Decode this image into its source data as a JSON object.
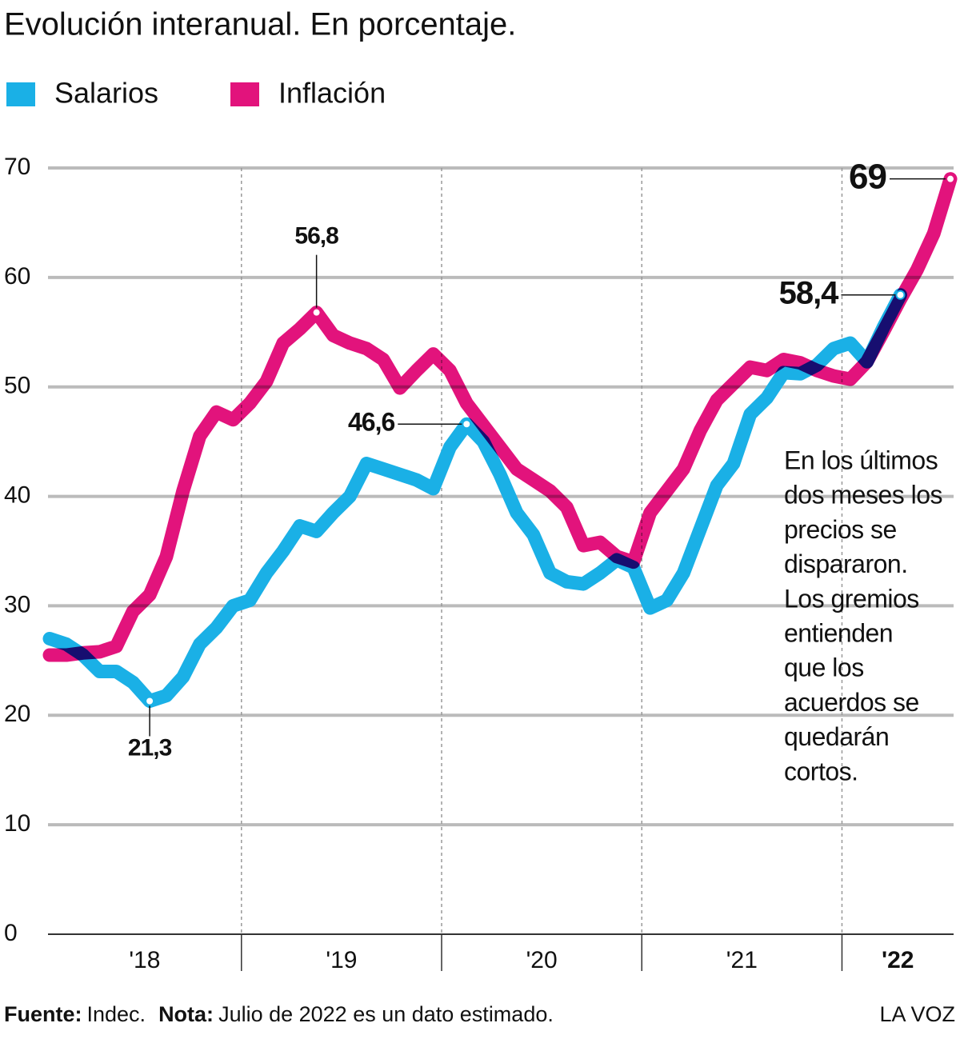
{
  "chart_data": {
    "type": "line",
    "title": "Evolución interanual. En porcentaje.",
    "categories": [
      null,
      null,
      null,
      null,
      null,
      null,
      null,
      null,
      null,
      null,
      null,
      null,
      null,
      null,
      null,
      null,
      null,
      null,
      null,
      null,
      null,
      null,
      null,
      null,
      null,
      null,
      null,
      null,
      null,
      null,
      null,
      null,
      null,
      null,
      null,
      null,
      null,
      null,
      null,
      null,
      null,
      null,
      null,
      null,
      null,
      null,
      null,
      null,
      null,
      null,
      null,
      null,
      null,
      null,
      null
    ],
    "year_labels": [
      "'18",
      "'19",
      "'20",
      "'21",
      "'22"
    ],
    "series": [
      {
        "name": "Salarios",
        "color": "#1ab0e6",
        "values": [
          27,
          26.5,
          25.5,
          24,
          24,
          23,
          21.3,
          21.8,
          23.5,
          26.5,
          28,
          30,
          30.5,
          33,
          35,
          37.3,
          36.8,
          38.5,
          40,
          43,
          42.5,
          42,
          41.5,
          40.7,
          44.5,
          46.6,
          45,
          42,
          38.5,
          36.5,
          33,
          32.2,
          32,
          33,
          34.2,
          33.5,
          29.8,
          30.5,
          33,
          37,
          41,
          43,
          47.5,
          49,
          51.3,
          51.2,
          52,
          53.5,
          54,
          52.3,
          55.5,
          58.4,
          null,
          null,
          null
        ],
        "value_labels": [
          null,
          null,
          null,
          null,
          null,
          null,
          "21,3",
          null,
          null,
          null,
          null,
          null,
          null,
          null,
          null,
          null,
          null,
          null,
          null,
          null,
          null,
          null,
          null,
          null,
          null,
          "46,6",
          null,
          null,
          null,
          null,
          null,
          null,
          null,
          null,
          null,
          null,
          null,
          null,
          null,
          null,
          null,
          null,
          null,
          null,
          null,
          null,
          null,
          null,
          null,
          null,
          null,
          "58,4",
          null,
          null,
          null
        ]
      },
      {
        "name": "Inflación",
        "color": "#e2137c",
        "values": [
          25.5,
          25.5,
          25.7,
          25.8,
          26.3,
          29.5,
          31,
          34.5,
          40.5,
          45.5,
          47.7,
          47,
          48.5,
          50.5,
          54,
          55.3,
          56.8,
          54.7,
          54,
          53.5,
          52.5,
          49.9,
          51.5,
          53,
          51.5,
          48.5,
          46.5,
          44.5,
          42.5,
          41.5,
          40.5,
          39,
          35.5,
          35.8,
          34.5,
          34,
          38.5,
          40.5,
          42.5,
          46,
          48.8,
          50.3,
          51.8,
          51.5,
          52.5,
          52.2,
          51.5,
          51,
          50.7,
          52.3,
          55.1,
          58,
          60.7,
          64,
          69
        ],
        "value_labels": [
          null,
          null,
          null,
          null,
          null,
          null,
          null,
          null,
          null,
          null,
          null,
          null,
          null,
          null,
          null,
          null,
          "56,8",
          null,
          null,
          null,
          null,
          null,
          null,
          null,
          null,
          null,
          null,
          null,
          null,
          null,
          null,
          null,
          null,
          null,
          null,
          null,
          null,
          null,
          null,
          null,
          null,
          null,
          null,
          null,
          null,
          null,
          null,
          null,
          null,
          null,
          null,
          null,
          null,
          null,
          "69"
        ]
      }
    ],
    "ylim": [
      0,
      70
    ],
    "yticks": [
      0,
      10,
      20,
      30,
      40,
      50,
      60,
      70
    ],
    "grid": true,
    "annotation": [
      "En los últimos",
      "dos meses los",
      "precios se",
      "dispararon.",
      "Los gremios",
      "entienden",
      "que los",
      "acuerdos se",
      "quedarán",
      "cortos."
    ],
    "footer": {
      "source_label": "Fuente:",
      "source": "Indec.",
      "note_label": "Nota:",
      "note": "Julio de 2022 es un dato estimado.",
      "brand": "LA VOZ"
    }
  }
}
